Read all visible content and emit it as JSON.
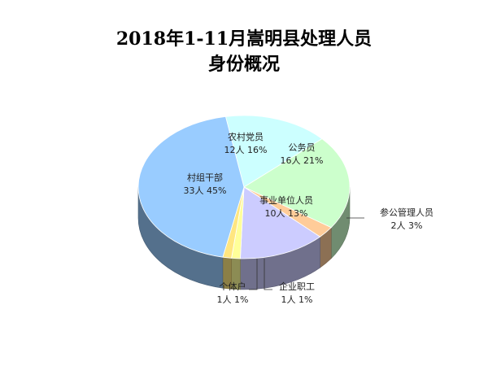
{
  "chart_data": {
    "type": "pie",
    "title_line1": "2018年1-11月嵩明县处理人员",
    "title_line2": "身份概况",
    "slices": [
      {
        "name": "农村党员",
        "count": 12,
        "count_text": "12人",
        "percent": 16,
        "percent_text": "16%",
        "color": "#ccffff"
      },
      {
        "name": "公务员",
        "count": 16,
        "count_text": "16人",
        "percent": 21,
        "percent_text": "21%",
        "color": "#ccffcc"
      },
      {
        "name": "参公管理人员",
        "count": 2,
        "count_text": "2人",
        "percent": 3,
        "percent_text": "3%",
        "color": "#ffcc99"
      },
      {
        "name": "事业单位人员",
        "count": 10,
        "count_text": "10人",
        "percent": 13,
        "percent_text": "13%",
        "color": "#ccccff"
      },
      {
        "name": "企业职工",
        "count": 1,
        "count_text": "1人",
        "percent": 1,
        "percent_text": "1%",
        "color": "#ffff99"
      },
      {
        "name": "个体户",
        "count": 1,
        "count_text": "1人",
        "percent": 1,
        "percent_text": "1%",
        "color": "#ffe680"
      },
      {
        "name": "村组干部",
        "count": 33,
        "count_text": "33人",
        "percent": 45,
        "percent_text": "45%",
        "color": "#99ccff"
      }
    ]
  }
}
